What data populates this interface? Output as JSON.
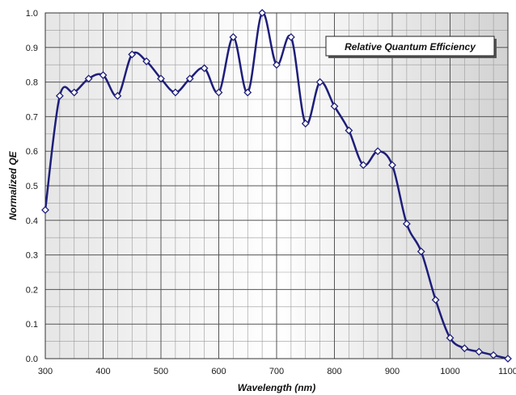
{
  "chart_data": {
    "type": "line",
    "title": "Relative Quantum Efficiency",
    "xlabel": "Wavelength (nm)",
    "ylabel": "Normalized QE",
    "xlim": [
      300,
      1100
    ],
    "ylim": [
      0,
      1.0
    ],
    "x_ticks": [
      "300",
      "400",
      "500",
      "600",
      "700",
      "800",
      "900",
      "1000",
      "1100"
    ],
    "y_ticks": [
      "0.0",
      "0.1",
      "0.2",
      "0.3",
      "0.4",
      "0.5",
      "0.6",
      "0.7",
      "0.8",
      "0.9",
      "1.0"
    ],
    "grid": true,
    "legend_position": "top-right",
    "colors": {
      "line": "#1e1e7a",
      "marker_fill": "#ffffff",
      "plot_background": "#c8c8c8"
    },
    "series": [
      {
        "x": [
          300,
          325,
          350,
          375,
          400,
          425,
          450,
          475,
          500,
          525,
          550,
          575,
          600,
          625,
          650,
          675,
          700,
          725,
          750,
          775,
          800,
          825,
          850,
          875,
          900,
          925,
          950,
          975,
          1000,
          1025,
          1050,
          1075,
          1100
        ],
        "y": [
          0.43,
          0.76,
          0.77,
          0.81,
          0.82,
          0.76,
          0.88,
          0.86,
          0.81,
          0.77,
          0.81,
          0.84,
          0.77,
          0.93,
          0.77,
          1.0,
          0.85,
          0.93,
          0.68,
          0.8,
          0.73,
          0.66,
          0.56,
          0.6,
          0.56,
          0.39,
          0.31,
          0.17,
          0.06,
          0.03,
          0.02,
          0.01,
          0.0
        ]
      }
    ]
  }
}
